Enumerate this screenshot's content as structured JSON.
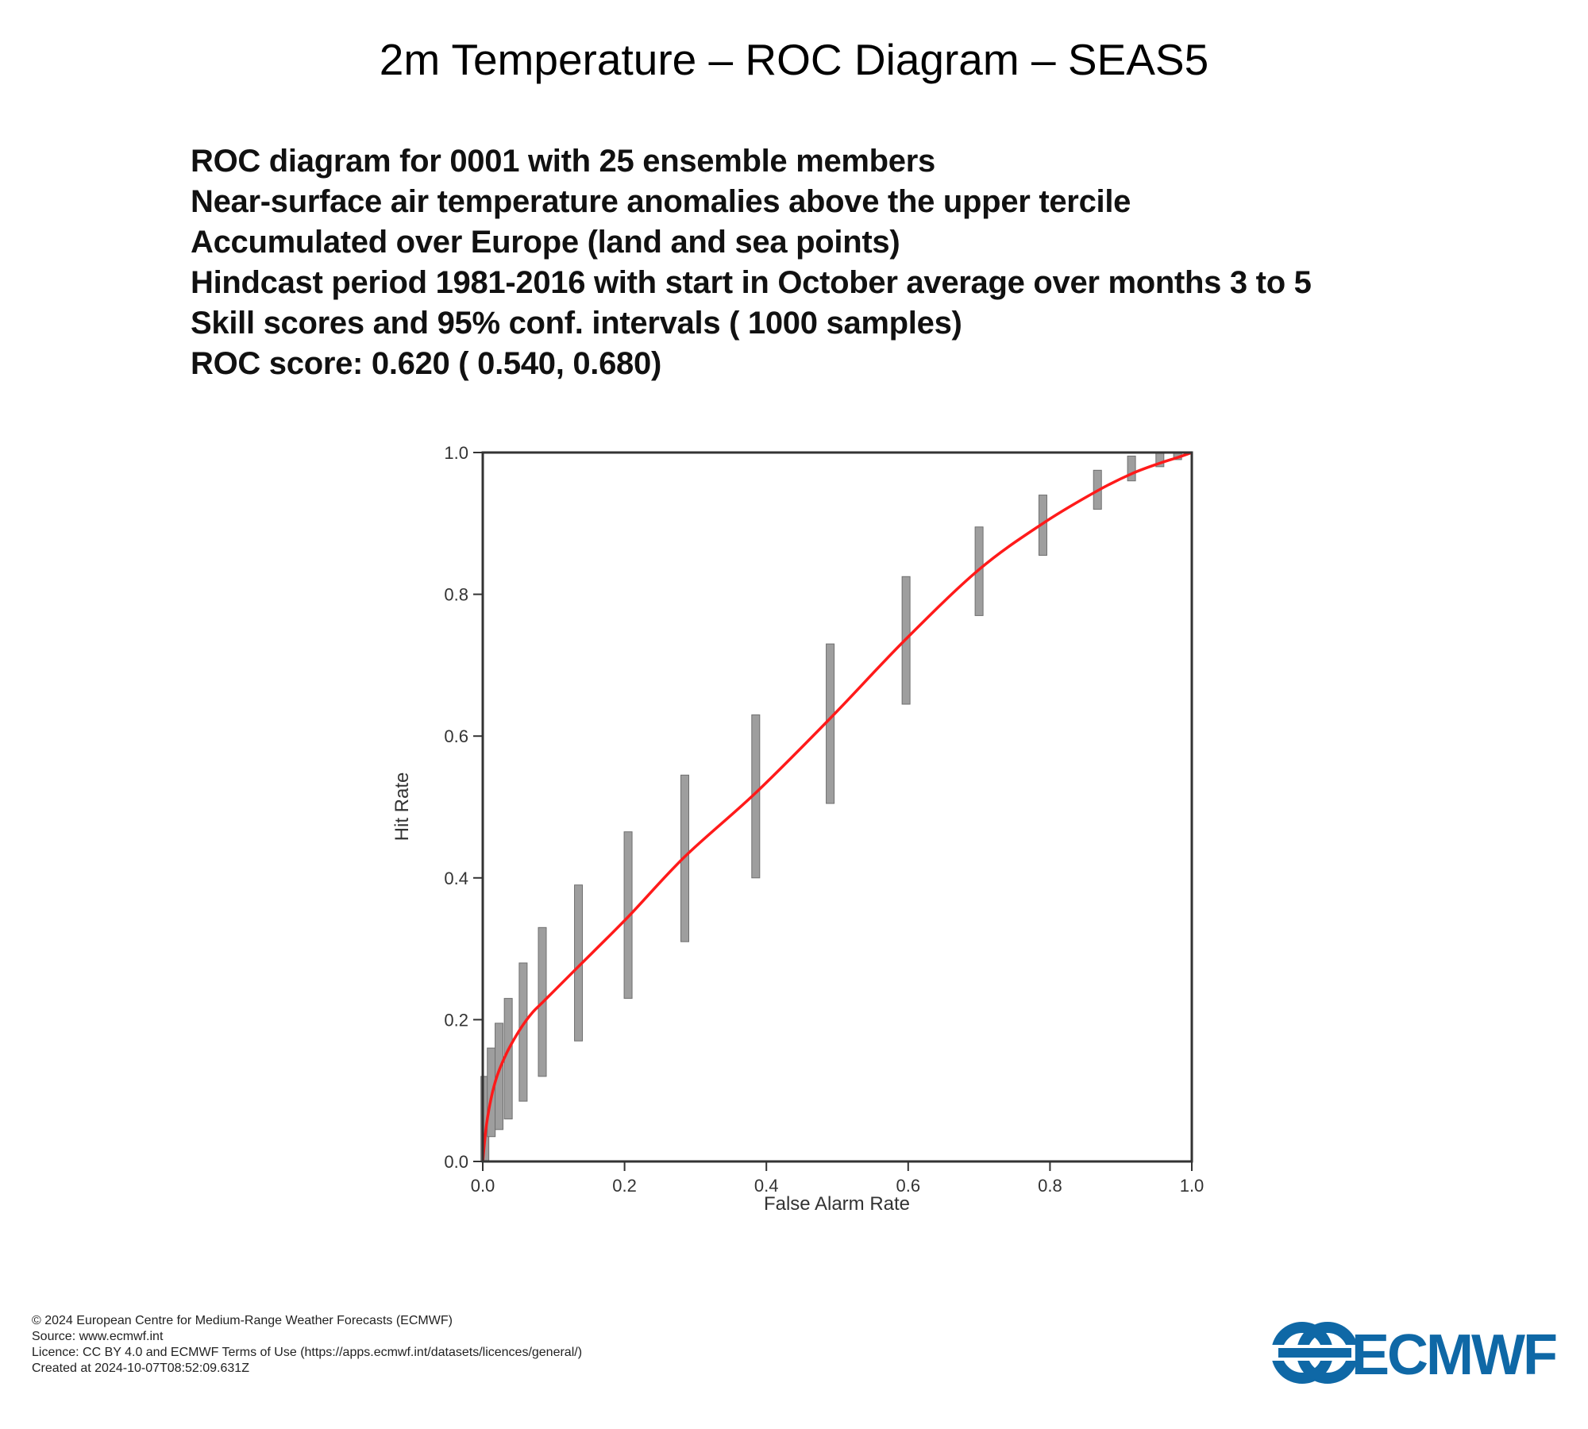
{
  "title": "2m Temperature – ROC Diagram – SEAS5",
  "info_lines": [
    "ROC diagram for 0001 with 25 ensemble members",
    "Near-surface air temperature anomalies above the upper tercile",
    "Accumulated over Europe (land and sea points)",
    "Hindcast period 1981-2016 with start in October average over months  3 to  5",
    "Skill scores and 95% conf. intervals ( 1000 samples)",
    "ROC score:  0.620 ( 0.540, 0.680)"
  ],
  "chart_data": {
    "type": "line",
    "xlabel": "False Alarm Rate",
    "ylabel": "Hit Rate",
    "xlim": [
      0,
      1
    ],
    "ylim": [
      0,
      1
    ],
    "x_ticks": [
      "0.0",
      "0.2",
      "0.4",
      "0.6",
      "0.8",
      "1.0"
    ],
    "y_ticks": [
      "0.0",
      "0.2",
      "0.4",
      "0.6",
      "0.8",
      "1.0"
    ],
    "grid": false,
    "curve_color": "#ff1a1a",
    "error_bar_color": "#9e9e9e",
    "curve": {
      "x": [
        0.0,
        0.005,
        0.012,
        0.02,
        0.03,
        0.04,
        0.055,
        0.07,
        0.085,
        0.1,
        0.135,
        0.205,
        0.285,
        0.385,
        0.49,
        0.595,
        0.7,
        0.79,
        0.865,
        0.915,
        0.955,
        0.98,
        1.0
      ],
      "y": [
        0.0,
        0.05,
        0.09,
        0.12,
        0.145,
        0.165,
        0.19,
        0.21,
        0.225,
        0.24,
        0.275,
        0.345,
        0.43,
        0.52,
        0.625,
        0.735,
        0.835,
        0.9,
        0.945,
        0.97,
        0.985,
        0.993,
        1.0
      ]
    },
    "confidence_intervals": [
      {
        "x": 0.003,
        "low": 0.0,
        "high": 0.12
      },
      {
        "x": 0.012,
        "low": 0.035,
        "high": 0.16
      },
      {
        "x": 0.023,
        "low": 0.045,
        "high": 0.195
      },
      {
        "x": 0.036,
        "low": 0.06,
        "high": 0.23
      },
      {
        "x": 0.057,
        "low": 0.085,
        "high": 0.28
      },
      {
        "x": 0.084,
        "low": 0.12,
        "high": 0.33
      },
      {
        "x": 0.135,
        "low": 0.17,
        "high": 0.39
      },
      {
        "x": 0.205,
        "low": 0.23,
        "high": 0.465
      },
      {
        "x": 0.285,
        "low": 0.31,
        "high": 0.545
      },
      {
        "x": 0.385,
        "low": 0.4,
        "high": 0.63
      },
      {
        "x": 0.49,
        "low": 0.505,
        "high": 0.73
      },
      {
        "x": 0.597,
        "low": 0.645,
        "high": 0.825
      },
      {
        "x": 0.7,
        "low": 0.77,
        "high": 0.895
      },
      {
        "x": 0.79,
        "low": 0.855,
        "high": 0.94
      },
      {
        "x": 0.867,
        "low": 0.92,
        "high": 0.975
      },
      {
        "x": 0.915,
        "low": 0.96,
        "high": 0.995
      },
      {
        "x": 0.955,
        "low": 0.98,
        "high": 1.0
      },
      {
        "x": 0.98,
        "low": 0.99,
        "high": 1.0
      }
    ]
  },
  "footer_lines": [
    "© 2024 European Centre for Medium-Range Weather Forecasts (ECMWF)",
    "Source: www.ecmwf.int",
    "Licence: CC BY 4.0 and ECMWF Terms of Use (https://apps.ecmwf.int/datasets/licences/general/)",
    "Created at 2024-10-07T08:52:09.631Z"
  ],
  "logo": {
    "text": "ECMWF",
    "color": "#0f68a6"
  }
}
